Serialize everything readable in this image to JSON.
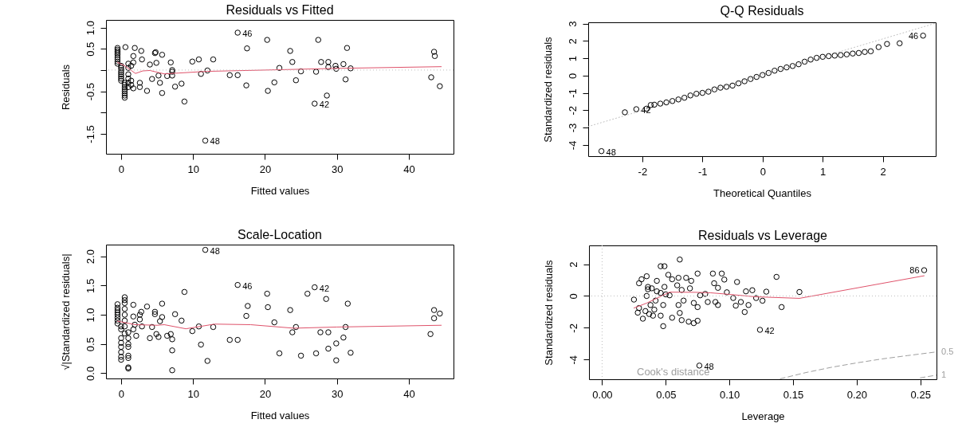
{
  "chart_data": [
    {
      "type": "scatter",
      "title": "Residuals vs Fitted",
      "xlabel": "Fitted values",
      "ylabel": "Residuals",
      "xlim": [
        -2.1,
        46.2
      ],
      "ylim": [
        -1.97,
        1.18
      ],
      "xticks": [
        0,
        10,
        20,
        30,
        40
      ],
      "yticks": [
        {
          "value": -1.5,
          "label": "-1.5"
        },
        {
          "value": -1,
          "label": null
        },
        {
          "value": -0.5,
          "label": "-0.5"
        },
        {
          "value": 0,
          "label": null
        },
        {
          "value": 0.5,
          "label": "0.5"
        },
        {
          "value": 1,
          "label": "1.0"
        }
      ],
      "grid": false,
      "marker": "circle",
      "series": [
        {
          "color": "#000000",
          "x": [
            -0.5,
            -0.5,
            -0.5,
            -0.5,
            -0.5,
            -0.5,
            -0.5,
            -0.5,
            -0.5,
            0,
            0,
            0,
            0,
            0,
            0,
            0,
            0,
            0.5,
            0.5,
            0.5,
            0.5,
            0.5,
            0.5,
            0.5,
            0.5,
            1,
            1,
            1,
            1,
            1,
            1,
            1.4,
            1.4,
            1.4,
            0.6,
            1.7,
            1.7,
            1.7,
            1.9,
            2.6,
            2.6,
            2.8,
            2.9,
            3.6,
            4,
            4.3,
            4.7,
            4.8,
            4.9,
            5.2,
            5.4,
            5.7,
            5.7,
            6.4,
            6.9,
            7.1,
            7.1,
            7.1,
            7.5,
            8.4,
            8.8,
            9.9,
            10.8,
            11.1,
            11.7,
            12,
            12.8,
            15.1,
            16.2,
            16.2,
            17.4,
            17.5,
            20.3,
            20.4,
            21.3,
            22,
            23.5,
            23.8,
            24.3,
            25,
            26.9,
            27.1,
            27.4,
            27.8,
            28.6,
            28.8,
            28.8,
            29.8,
            29.9,
            30.9,
            31.2,
            31.4,
            31.9,
            43.1,
            43.5,
            43.6,
            44.3
          ],
          "values": [
            0.52,
            0.48,
            0.44,
            0.4,
            0.36,
            0.3,
            0.25,
            0.2,
            0.15,
            0.1,
            0.05,
            0,
            -0.05,
            -0.1,
            -0.15,
            -0.2,
            -0.25,
            -0.3,
            -0.35,
            -0.4,
            -0.45,
            -0.5,
            -0.55,
            -0.6,
            -0.65,
            0.15,
            0.05,
            -0.1,
            -0.2,
            -0.3,
            -0.4,
            0.1,
            -0.25,
            -0.35,
            0.54,
            0.33,
            0.18,
            -0.43,
            0.52,
            -0.3,
            -0.4,
            0.45,
            0.25,
            -0.49,
            0.13,
            -0.21,
            0.4,
            0.42,
            0.17,
            -0.13,
            -0.3,
            0.36,
            -0.54,
            -0.14,
            0.18,
            -0.13,
            -0.04,
            0,
            -0.39,
            -0.32,
            -0.74,
            0.2,
            0.25,
            -0.09,
            -1.66,
            -0.01,
            0.25,
            -0.12,
            0.88,
            -0.12,
            -0.36,
            0.51,
            0.71,
            -0.49,
            -0.29,
            0.05,
            0.45,
            0.19,
            -0.24,
            -0.03,
            -0.79,
            -0.04,
            0.71,
            0.19,
            -0.6,
            0.19,
            0.07,
            0.1,
            0.03,
            0.14,
            -0.22,
            0.52,
            0.04,
            -0.17,
            0.43,
            0.33,
            -0.38
          ]
        },
        {
          "type": "line",
          "marker": "none",
          "color": "#df536b",
          "x": [
            -0.5,
            0.5,
            1.5,
            2,
            3,
            4,
            5,
            6,
            8,
            12,
            20,
            30,
            44.5
          ],
          "values": [
            0.18,
            0.1,
            -0.02,
            -0.08,
            -0.02,
            -0.01,
            -0.05,
            -0.09,
            -0.07,
            -0.03,
            0,
            0.04,
            0.08
          ]
        }
      ],
      "ref_lines": [
        {
          "axis": "y",
          "value": 0,
          "color": "#bebebe",
          "line_style": "dotted"
        }
      ],
      "annotations": [
        {
          "text": "46",
          "x": 16.2,
          "y": 0.88
        },
        {
          "text": "42",
          "x": 26.9,
          "y": -0.79
        },
        {
          "text": "48",
          "x": 11.7,
          "y": -1.66
        }
      ]
    },
    {
      "type": "scatter",
      "title": "Q-Q Residuals",
      "xlabel": "Theoretical Quantiles",
      "ylabel": "Standardized residuals",
      "xlim": [
        -2.9,
        2.88
      ],
      "ylim": [
        -4.65,
        3.07
      ],
      "xticks": [
        -2,
        -1,
        0,
        1,
        2
      ],
      "yticks": [
        -4,
        -3,
        -2,
        -1,
        0,
        1,
        2,
        3
      ],
      "grid": false,
      "marker": "circle",
      "series": [
        {
          "type": "line",
          "marker": "none",
          "color": "#bebebe",
          "line_style": "dotted",
          "x": [
            -2.9,
            2.88
          ],
          "values": [
            -2.94,
            3.02
          ]
        },
        {
          "color": "#000000",
          "x": [
            -2.68,
            -2.29,
            -2.1,
            -1.93,
            -1.86,
            -1.8,
            -1.7,
            -1.6,
            -1.5,
            -1.4,
            -1.3,
            -1.2,
            -1.1,
            -1,
            -0.9,
            -0.8,
            -0.7,
            -0.6,
            -0.5,
            -0.4,
            -0.3,
            -0.2,
            -0.1,
            0,
            0.1,
            0.2,
            0.3,
            0.4,
            0.5,
            0.6,
            0.7,
            0.8,
            0.9,
            1,
            1.1,
            1.2,
            1.3,
            1.4,
            1.5,
            1.6,
            1.7,
            1.8,
            1.93,
            2.07,
            2.28,
            2.67
          ],
          "values": [
            -4.36,
            -2.12,
            -1.94,
            -1.91,
            -1.7,
            -1.68,
            -1.62,
            -1.55,
            -1.47,
            -1.38,
            -1.28,
            -1.15,
            -1.05,
            -1,
            -0.93,
            -0.8,
            -0.7,
            -0.65,
            -0.58,
            -0.45,
            -0.33,
            -0.2,
            -0.08,
            0.03,
            0.15,
            0.28,
            0.38,
            0.47,
            0.55,
            0.65,
            0.8,
            0.92,
            1.02,
            1.08,
            1.12,
            1.15,
            1.18,
            1.22,
            1.27,
            1.3,
            1.36,
            1.4,
            1.64,
            1.82,
            1.86,
            2.3
          ]
        }
      ],
      "annotations": [
        {
          "text": "46",
          "x": 2.67,
          "y": 2.3
        },
        {
          "text": "42",
          "x": -2.1,
          "y": -1.94
        },
        {
          "text": "48",
          "x": -2.68,
          "y": -4.36
        }
      ]
    },
    {
      "type": "scatter",
      "title": "Scale-Location",
      "xlabel": "Fitted values",
      "ylabel": "√|Standardized residuals|",
      "xlim": [
        -2.1,
        46.2
      ],
      "ylim": [
        -0.09,
        2.2
      ],
      "xticks": [
        0,
        10,
        20,
        30,
        40
      ],
      "yticks": [
        {
          "value": 0,
          "label": "0.0"
        },
        {
          "value": 0.5,
          "label": "0.5"
        },
        {
          "value": 1,
          "label": "1.0"
        },
        {
          "value": 1.5,
          "label": "1.5"
        },
        {
          "value": 2,
          "label": "2.0"
        }
      ],
      "grid": false,
      "marker": "circle",
      "series": [
        {
          "color": "#000000",
          "x": [
            -0.5,
            -0.5,
            -0.5,
            -0.5,
            -0.5,
            -0.5,
            -0.5,
            -0.5,
            0,
            0,
            0,
            0,
            0,
            0,
            0,
            0,
            0.5,
            0.5,
            0.5,
            0.5,
            0.5,
            0.5,
            0.5,
            0.5,
            1,
            1,
            1,
            1,
            1,
            1,
            1,
            1,
            1.7,
            1.7,
            1.7,
            1.9,
            2.1,
            2.6,
            2.6,
            2.8,
            2.9,
            3.6,
            4,
            4.3,
            4.7,
            4.7,
            4.9,
            5.2,
            5.4,
            5.7,
            5.7,
            6.4,
            6.9,
            7.1,
            7.1,
            7.1,
            7.5,
            8.4,
            8.8,
            9.9,
            10.8,
            11.1,
            11.7,
            12,
            12.8,
            15.1,
            16.2,
            16.2,
            17.4,
            17.6,
            20.3,
            20.4,
            21.3,
            22,
            23.5,
            23.8,
            24.3,
            25,
            25.9,
            26.9,
            27.1,
            27.7,
            28.5,
            28.8,
            28.8,
            29.9,
            29.9,
            30.9,
            31.2,
            31.5,
            31.9,
            43,
            43.5,
            43.5,
            44.3
          ],
          "values": [
            1.18,
            1.12,
            1.08,
            1.04,
            1,
            0.95,
            0.9,
            0.85,
            0.8,
            0.75,
            0.6,
            0.52,
            0.45,
            0.36,
            0.28,
            0.23,
            1.3,
            1.25,
            1.2,
            1.1,
            1,
            0.9,
            0.8,
            0.68,
            0.5,
            0.45,
            0.3,
            0.26,
            0.1,
            0.08,
            0.6,
            0.7,
            0.97,
            1.17,
            0.75,
            0.83,
            0.64,
            1,
            0.92,
            1.05,
            0.8,
            1.14,
            0.6,
            0.79,
            1.05,
            1.01,
            0.67,
            0.62,
            0.89,
            1.19,
            0.96,
            0.64,
            0.67,
            0.05,
            0.39,
            0.58,
            1.01,
            0.9,
            1.39,
            0.72,
            0.8,
            0.49,
            2.11,
            0.21,
            0.79,
            0.57,
            1.51,
            0.57,
            0.98,
            1.15,
            1.36,
            1.13,
            0.87,
            0.34,
            1.08,
            0.7,
            0.79,
            0.3,
            1.36,
            1.47,
            0.34,
            0.7,
            1.27,
            0.7,
            0.42,
            0.51,
            0.22,
            0.61,
            0.79,
            1.19,
            0.35,
            0.67,
            1.08,
            0.94,
            1.02
          ]
        },
        {
          "type": "line",
          "marker": "none",
          "color": "#df536b",
          "x": [
            -0.5,
            2,
            5,
            6,
            9,
            13,
            18,
            24,
            30,
            44.5
          ],
          "values": [
            0.89,
            0.83,
            0.82,
            0.83,
            0.76,
            0.84,
            0.83,
            0.77,
            0.79,
            0.82
          ]
        }
      ],
      "annotations": [
        {
          "text": "48",
          "x": 11.7,
          "y": 2.11
        },
        {
          "text": "46",
          "x": 16.2,
          "y": 1.51
        },
        {
          "text": "42",
          "x": 26.9,
          "y": 1.47
        }
      ]
    },
    {
      "type": "scatter",
      "title": "Residuals vs Leverage",
      "xlabel": "Leverage",
      "ylabel": "Standardized residuals",
      "xlim": [
        -0.0103,
        0.2627
      ],
      "ylim": [
        -5.24,
        3.18
      ],
      "xticks": [
        {
          "value": 0,
          "label": "0.00"
        },
        {
          "value": 0.05,
          "label": "0.05"
        },
        {
          "value": 0.1,
          "label": "0.10"
        },
        {
          "value": 0.15,
          "label": "0.15"
        },
        {
          "value": 0.2,
          "label": "0.20"
        },
        {
          "value": 0.25,
          "label": "0.25"
        }
      ],
      "yticks": [
        -4,
        -2,
        0,
        2
      ],
      "grid": false,
      "marker": "circle",
      "series": [
        {
          "color": "#000000",
          "x": [
            0.253,
            0.0764,
            0.124,
            0.155,
            0.137,
            0.141,
            0.129,
            0.126,
            0.121,
            0.118,
            0.115,
            0.112,
            0.113,
            0.106,
            0.105,
            0.103,
            0.109,
            0.098,
            0.096,
            0.094,
            0.091,
            0.091,
            0.088,
            0.087,
            0.089,
            0.083,
            0.081,
            0.077,
            0.075,
            0.075,
            0.072,
            0.068,
            0.072,
            0.075,
            0.07,
            0.069,
            0.066,
            0.061,
            0.06,
            0.0625,
            0.06,
            0.061,
            0.0625,
            0.064,
            0.059,
            0.055,
            0.052,
            0.048,
            0.049,
            0.048,
            0.046,
            0.049,
            0.046,
            0.043,
            0.043,
            0.042,
            0.041,
            0.039,
            0.038,
            0.037,
            0.036,
            0.035,
            0.035,
            0.034,
            0.032,
            0.031,
            0.029,
            0.029,
            0.028,
            0.025,
            0.036,
            0.04,
            0.055,
            0.053,
            0.046,
            0.05
          ],
          "values": [
            1.62,
            -4.38,
            -2.13,
            0.25,
            1.2,
            -0.7,
            0.27,
            -0.3,
            -0.13,
            0.36,
            -0.57,
            -1.01,
            0.29,
            0.88,
            -0.61,
            -0.13,
            -0.38,
            0.23,
            1.03,
            1.41,
            0.51,
            -0.57,
            0.8,
            1.41,
            -0.38,
            -0.38,
            0.13,
            0.04,
            1.41,
            -1.56,
            -1.71,
            -1.62,
            -0.44,
            -0.7,
            0.95,
            0.48,
            1.14,
            2.29,
            1.14,
            0.38,
            -0.57,
            -1.07,
            -1.52,
            -0.29,
            0.67,
            1.05,
            1.33,
            -0.57,
            0.57,
            -1.9,
            1.87,
            1.87,
            -1.24,
            0.29,
            0.95,
            -0.29,
            -0.86,
            0.48,
            -0.57,
            -1.14,
            0.57,
            1.24,
            0,
            -0.95,
            -1.43,
            1.05,
            0.8,
            -0.76,
            -1.05,
            -0.23,
            0.42,
            -1.24,
            -1.37,
            0.04,
            0.19,
            0.1
          ]
        },
        {
          "type": "line",
          "marker": "none",
          "color": "#df536b",
          "x": [
            0.025,
            0.035,
            0.053,
            0.073,
            0.085,
            0.1,
            0.12,
            0.155,
            0.253
          ],
          "values": [
            -0.76,
            -0.45,
            0.24,
            0.23,
            0.2,
            0.1,
            -0.05,
            -0.15,
            1.27
          ]
        },
        {
          "type": "line",
          "marker": "none",
          "name": "0.5",
          "color": "#9e9e9e",
          "line_style": "dashed",
          "x": [
            0.14,
            0.16,
            0.18,
            0.2,
            0.22,
            0.24,
            0.2627
          ],
          "values": [
            -5.21,
            -4.82,
            -4.49,
            -4.21,
            -3.96,
            -3.75,
            -3.52
          ]
        },
        {
          "type": "line",
          "marker": "none",
          "name": "1",
          "color": "#9e9e9e",
          "line_style": "dashed",
          "x": [
            0.25,
            0.2627
          ],
          "values": [
            -5.15,
            -4.98
          ]
        }
      ],
      "ref_lines": [
        {
          "axis": "y",
          "value": 0,
          "color": "#bebebe",
          "line_style": "dotted"
        },
        {
          "axis": "x",
          "value": 0,
          "color": "#bebebe",
          "line_style": "dotted"
        }
      ],
      "annotations": [
        {
          "text": "86",
          "x": 0.253,
          "y": 1.62
        },
        {
          "text": "42",
          "x": 0.124,
          "y": -2.13
        },
        {
          "text": "48",
          "x": 0.0764,
          "y": -4.38
        },
        "Cook's distance"
      ]
    }
  ]
}
